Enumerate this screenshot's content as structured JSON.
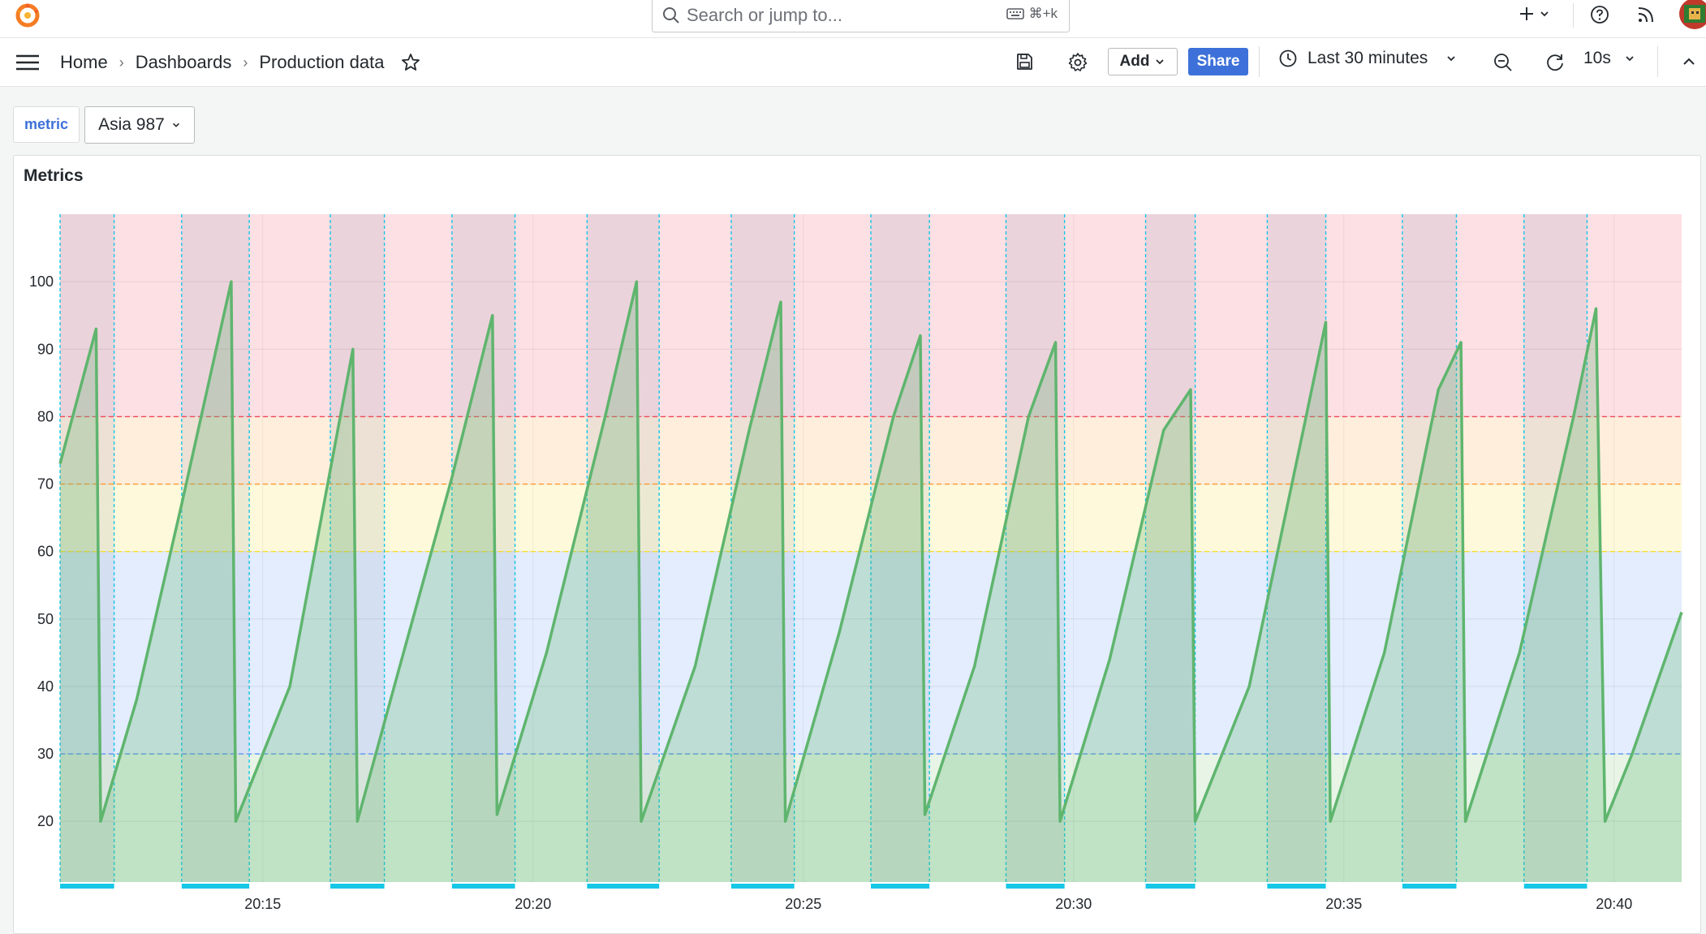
{
  "topbar": {
    "search_placeholder": "Search or jump to...",
    "search_shortcut": "⌘+k",
    "plus_icon": "plus-icon",
    "help_icon": "question-circle-icon",
    "news_icon": "rss-icon"
  },
  "navbar": {
    "breadcrumbs": [
      "Home",
      "Dashboards",
      "Production data"
    ],
    "add_label": "Add",
    "share_label": "Share",
    "time_range": "Last 30 minutes",
    "refresh_interval": "10s"
  },
  "variables": {
    "label": "metric",
    "value": "Asia 987"
  },
  "panel": {
    "title": "Metrics"
  },
  "colors": {
    "accent": "#3d71d9",
    "series": "#5fb56e",
    "annotation": "#16c7e6",
    "threshold_red": "#f2495c",
    "threshold_orange": "#ff9830",
    "threshold_yellow": "#fade2a",
    "threshold_blue": "#5794f2",
    "threshold_green": "#73bf69"
  },
  "chart_data": {
    "type": "area",
    "title": "Metrics",
    "xlabel": "",
    "ylabel": "",
    "x_range": [
      "20:11:15",
      "20:41:15"
    ],
    "x_ticks": [
      "20:15",
      "20:20",
      "20:25",
      "20:30",
      "20:35",
      "20:40"
    ],
    "ylim": [
      11,
      110
    ],
    "y_ticks": [
      20,
      30,
      40,
      50,
      60,
      70,
      80,
      90,
      100
    ],
    "grid": true,
    "legend": "none",
    "thresholds": [
      {
        "from": 11,
        "to": 30,
        "color": "green"
      },
      {
        "from": 30,
        "to": 60,
        "color": "blue"
      },
      {
        "from": 60,
        "to": 70,
        "color": "yellow"
      },
      {
        "from": 70,
        "to": 80,
        "color": "orange"
      },
      {
        "from": 80,
        "to": 110,
        "color": "red"
      }
    ],
    "annotation_regions": [
      [
        "20:11:15",
        "20:12:15"
      ],
      [
        "20:13:30",
        "20:14:45"
      ],
      [
        "20:16:15",
        "20:17:15"
      ],
      [
        "20:18:30",
        "20:19:40"
      ],
      [
        "20:21:00",
        "20:22:20"
      ],
      [
        "20:23:40",
        "20:24:50"
      ],
      [
        "20:26:15",
        "20:27:20"
      ],
      [
        "20:28:45",
        "20:29:50"
      ],
      [
        "20:31:20",
        "20:32:15"
      ],
      [
        "20:33:35",
        "20:34:40"
      ],
      [
        "20:36:05",
        "20:37:05"
      ],
      [
        "20:38:20",
        "20:39:30"
      ]
    ],
    "series": [
      {
        "points": [
          [
            "20:11:15",
            73
          ],
          [
            "20:11:55",
            93
          ],
          [
            "20:12:00",
            20
          ],
          [
            "20:12:40",
            38
          ],
          [
            "20:13:30",
            67
          ],
          [
            "20:14:25",
            100
          ],
          [
            "20:14:30",
            20
          ],
          [
            "20:15:30",
            40
          ],
          [
            "20:16:40",
            90
          ],
          [
            "20:16:45",
            20
          ],
          [
            "20:17:30",
            42
          ],
          [
            "20:18:30",
            71
          ],
          [
            "20:19:15",
            95
          ],
          [
            "20:19:20",
            21
          ],
          [
            "20:20:15",
            45
          ],
          [
            "20:21:20",
            80
          ],
          [
            "20:21:55",
            100
          ],
          [
            "20:22:00",
            20
          ],
          [
            "20:23:00",
            43
          ],
          [
            "20:24:00",
            78
          ],
          [
            "20:24:35",
            97
          ],
          [
            "20:24:40",
            20
          ],
          [
            "20:25:40",
            48
          ],
          [
            "20:26:40",
            80
          ],
          [
            "20:27:10",
            92
          ],
          [
            "20:27:15",
            21
          ],
          [
            "20:28:10",
            43
          ],
          [
            "20:29:10",
            80
          ],
          [
            "20:29:40",
            91
          ],
          [
            "20:29:45",
            20
          ],
          [
            "20:30:40",
            44
          ],
          [
            "20:31:40",
            78
          ],
          [
            "20:32:10",
            84
          ],
          [
            "20:32:15",
            20
          ],
          [
            "20:33:15",
            40
          ],
          [
            "20:34:15",
            78
          ],
          [
            "20:34:40",
            94
          ],
          [
            "20:34:45",
            20
          ],
          [
            "20:35:45",
            45
          ],
          [
            "20:36:45",
            84
          ],
          [
            "20:37:10",
            91
          ],
          [
            "20:37:15",
            20
          ],
          [
            "20:38:15",
            45
          ],
          [
            "20:39:15",
            80
          ],
          [
            "20:39:40",
            96
          ],
          [
            "20:39:50",
            20
          ],
          [
            "20:40:20",
            30
          ],
          [
            "20:41:15",
            51
          ]
        ]
      }
    ]
  }
}
